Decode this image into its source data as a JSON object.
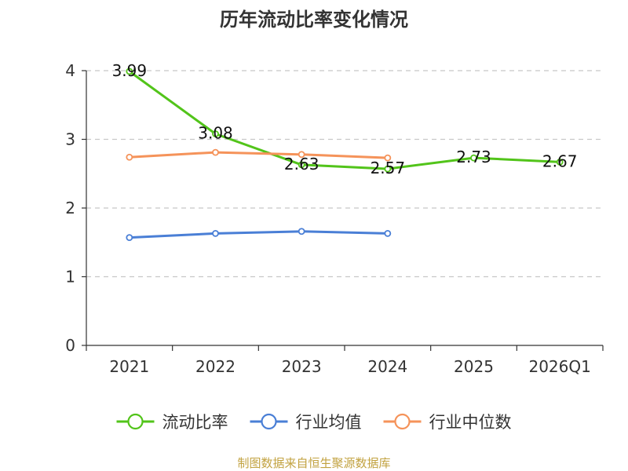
{
  "chart_data": {
    "type": "line",
    "title": "历年流动比率变化情况",
    "categories": [
      "2021",
      "2022",
      "2023",
      "2024",
      "2025",
      "2026Q1"
    ],
    "ylim": [
      0,
      4
    ],
    "yticks": [
      "0",
      "1",
      "2",
      "3",
      "4"
    ],
    "grid": true,
    "legend_position": "bottom",
    "series": [
      {
        "name": "流动比率",
        "color": "#52c41a",
        "values": [
          3.99,
          3.08,
          2.63,
          2.57,
          2.73,
          2.67
        ],
        "labels": [
          "3.99",
          "3.08",
          "2.63",
          "2.57",
          "2.73",
          "2.67"
        ]
      },
      {
        "name": "行业均值",
        "color": "#4a7fd6",
        "values": [
          1.57,
          1.63,
          1.66,
          1.63,
          null,
          null
        ]
      },
      {
        "name": "行业中位数",
        "color": "#f5935a",
        "values": [
          2.74,
          2.81,
          2.78,
          2.73,
          null,
          null
        ]
      }
    ],
    "source": "制图数据来自恒生聚源数据库"
  }
}
